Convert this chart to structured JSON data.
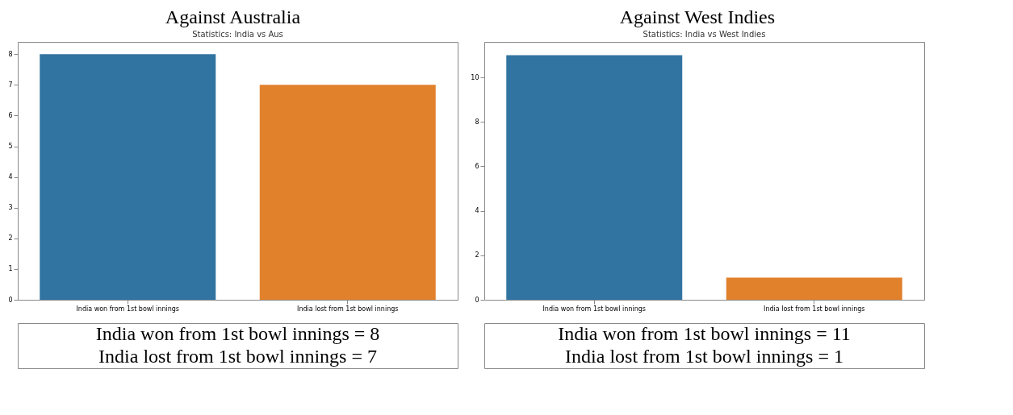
{
  "chart_data": [
    {
      "type": "bar",
      "title": "Against Australia",
      "subtitle": "Statistics: India vs Aus",
      "categories": [
        "India won from 1st bowl innings",
        "India lost from 1st bowl innings"
      ],
      "values": [
        8,
        7
      ],
      "colors": [
        "#3274a1",
        "#e1812c"
      ],
      "ylim": [
        0,
        8.4
      ],
      "yticks": [
        0,
        1,
        2,
        3,
        4,
        5,
        6,
        7,
        8
      ],
      "annotations": [
        "India won from 1st bowl innings = 8",
        "India lost from 1st bowl innings = 7"
      ]
    },
    {
      "type": "bar",
      "title": "Against West Indies",
      "subtitle": "Statistics: India vs West Indies",
      "categories": [
        "India won from 1st bowl innings",
        "India lost from 1st bowl innings"
      ],
      "values": [
        11,
        1
      ],
      "colors": [
        "#3274a1",
        "#e1812c"
      ],
      "ylim": [
        0,
        11.6
      ],
      "yticks": [
        0,
        2,
        4,
        6,
        8,
        10
      ],
      "annotations": [
        "India won from 1st bowl innings = 11",
        "India lost from 1st bowl innings = 1"
      ]
    }
  ]
}
